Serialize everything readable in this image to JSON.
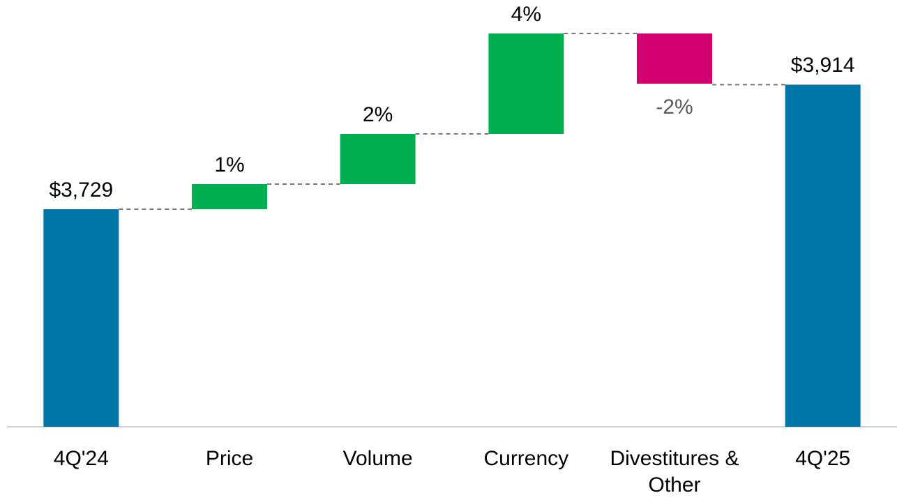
{
  "chart_data": {
    "type": "waterfall",
    "categories": [
      "4Q'24",
      "Price",
      "Volume",
      "Currency",
      "Divestitures & Other",
      "4Q'25"
    ],
    "values": [
      3729,
      1,
      2,
      4,
      -2,
      3914
    ],
    "value_labels": [
      "$3,729",
      "1%",
      "2%",
      "4%",
      "-2%",
      "$3,914"
    ],
    "measure": [
      "absolute",
      "relative",
      "relative",
      "relative",
      "relative",
      "total"
    ],
    "colors": {
      "total": "#0076a8",
      "increase": "#00b050",
      "decrease": "#d4006f"
    }
  }
}
